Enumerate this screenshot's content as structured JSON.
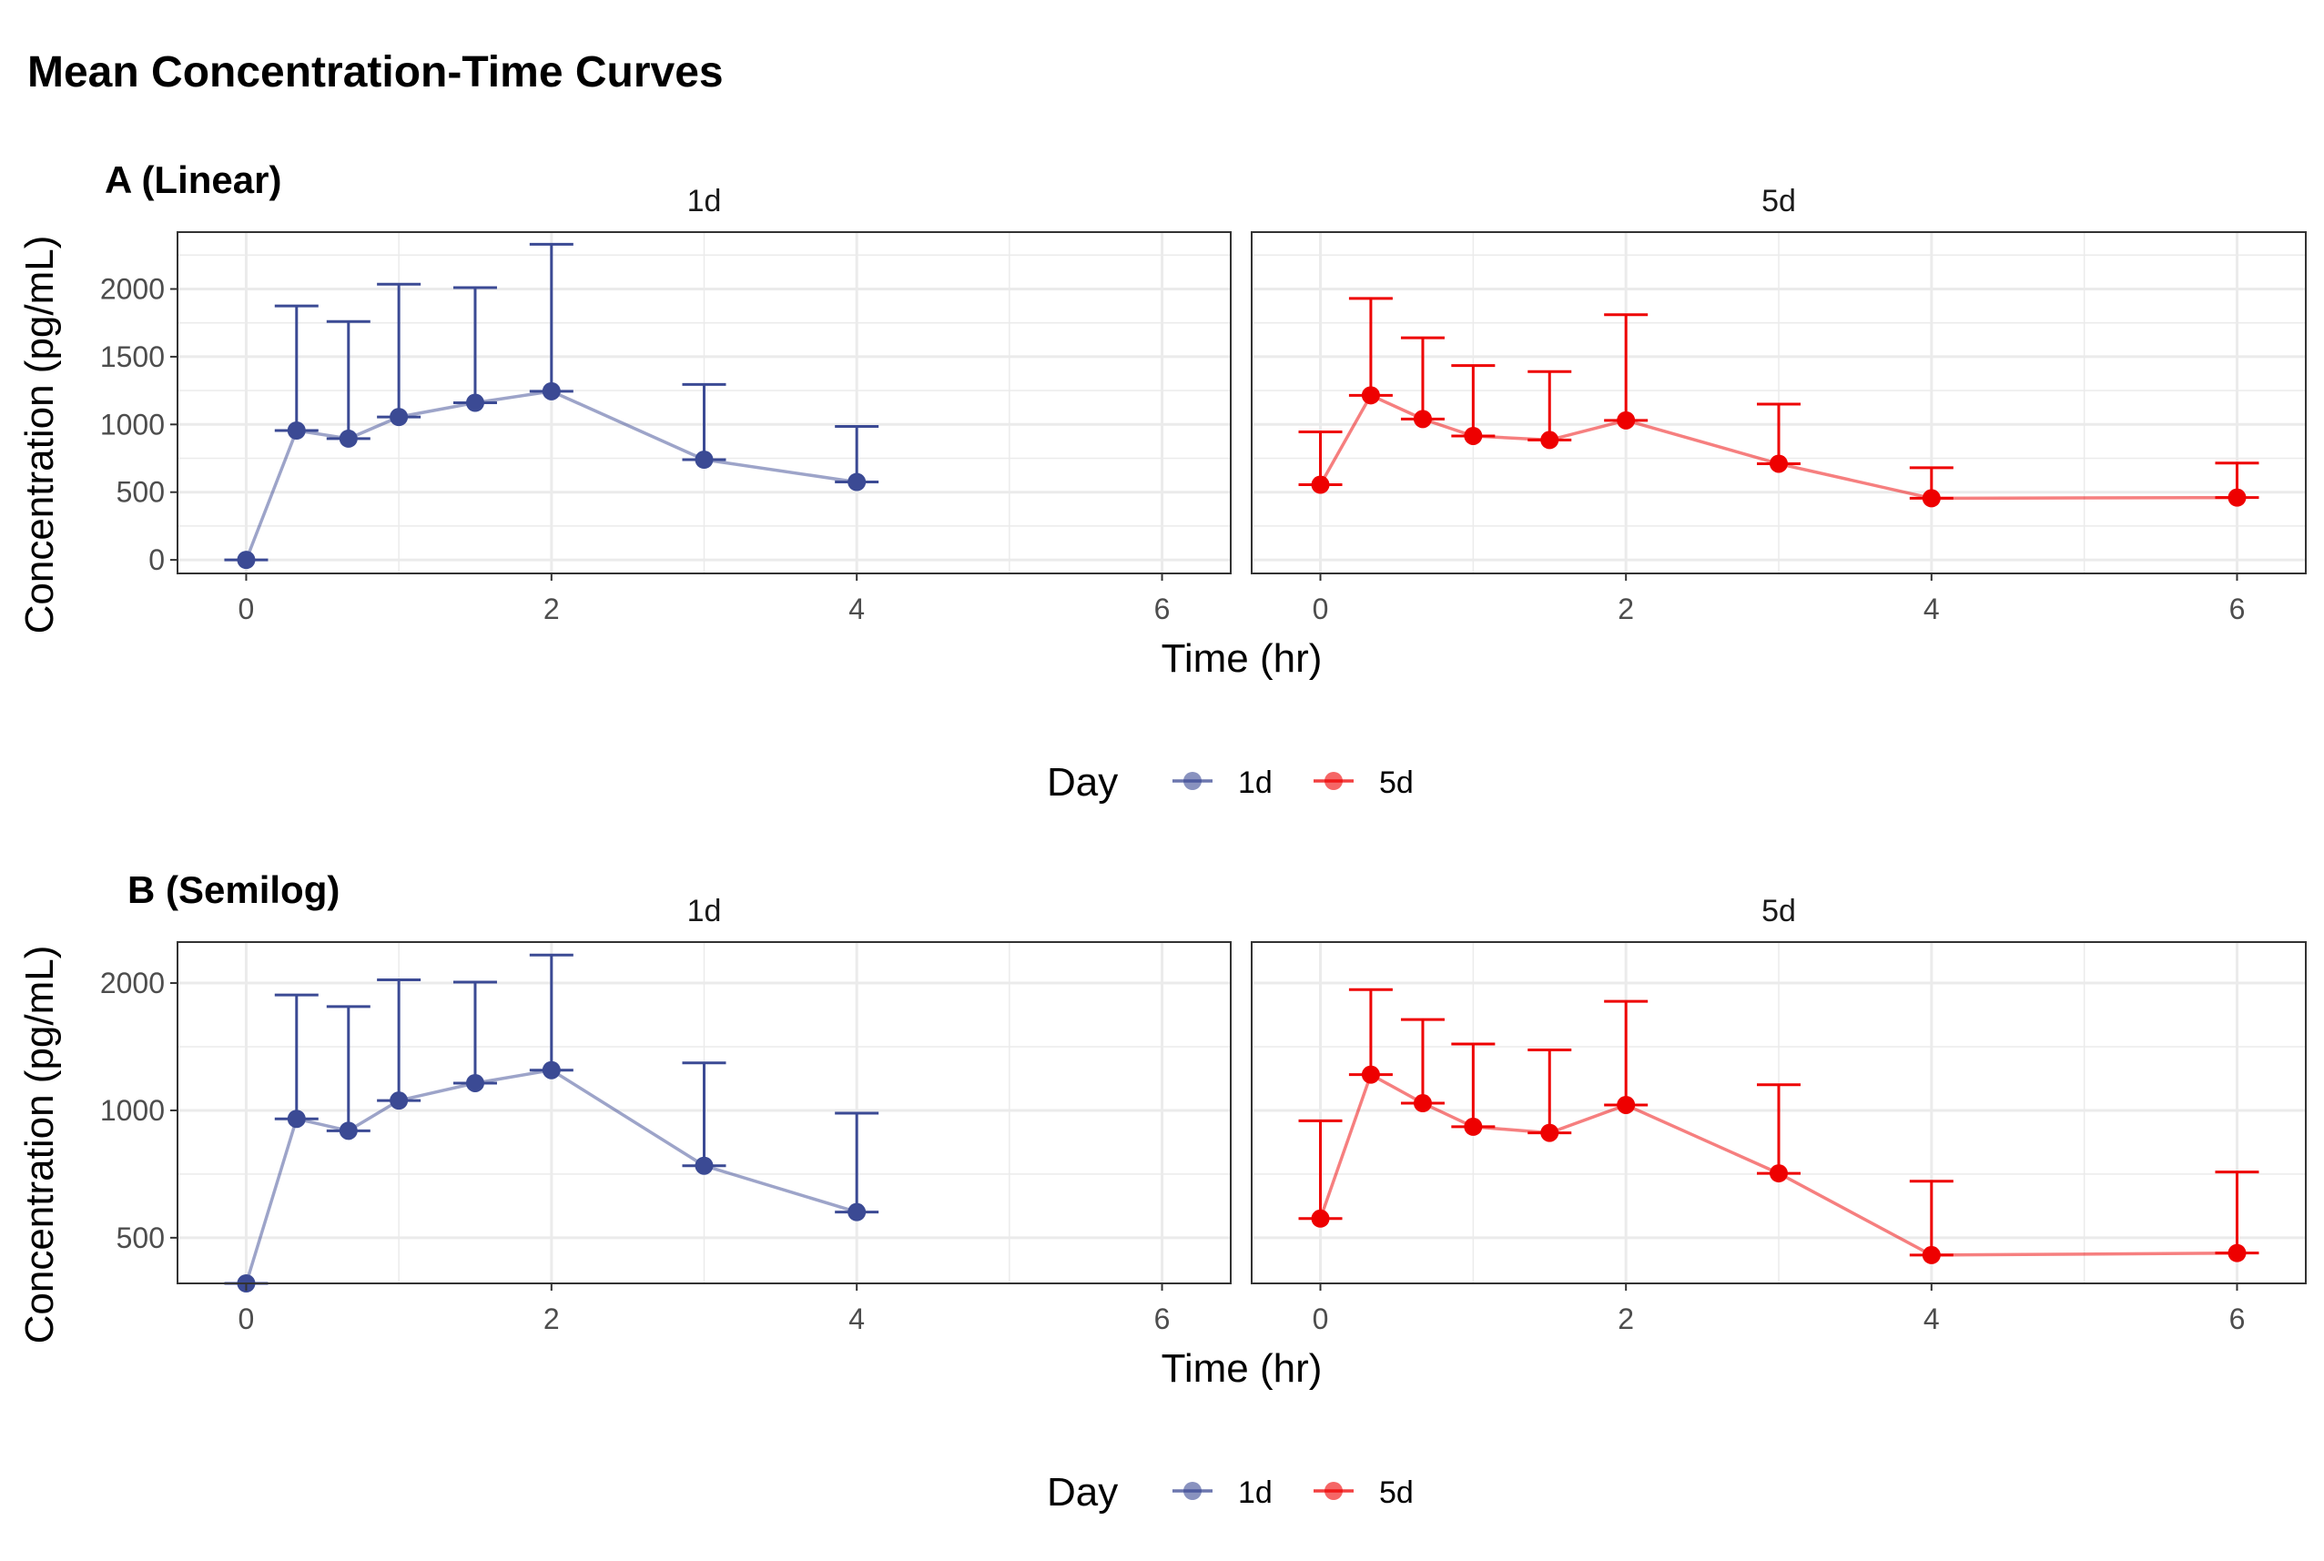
{
  "title": "Mean Concentration-Time Curves",
  "colors": {
    "1d": "#3B4A94",
    "5d": "#EE0000",
    "grid": "#EBEBEB"
  },
  "legend": {
    "title": "Day",
    "entries": [
      "1d",
      "5d"
    ]
  },
  "chart_data": [
    {
      "type": "line",
      "tag": "A (Linear)",
      "scale": "linear",
      "xlabel": "Time (hr)",
      "ylabel": "Concentration (pg/mL)",
      "xlim": [
        -0.45,
        6.45
      ],
      "ylim": [
        -100,
        2420
      ],
      "x_ticks": [
        0,
        2,
        4,
        6
      ],
      "y_ticks": [
        0,
        500,
        1000,
        1500,
        2000
      ],
      "y_tick_labels": [
        "0",
        "500",
        "1000",
        "1500",
        "2000"
      ],
      "facets": [
        "1d",
        "5d"
      ],
      "series": [
        {
          "name": "1d",
          "x": [
            0,
            0.33,
            0.67,
            1,
            1.5,
            2,
            3,
            4
          ],
          "y": [
            0,
            955,
            895,
            1055,
            1160,
            1245,
            740,
            575
          ],
          "error_upper": [
            0,
            1875,
            1760,
            2035,
            2010,
            2330,
            1295,
            985
          ]
        },
        {
          "name": "5d",
          "x": [
            0,
            0.33,
            0.67,
            1,
            1.5,
            2,
            3,
            4,
            6
          ],
          "y": [
            555,
            1215,
            1040,
            915,
            885,
            1030,
            710,
            455,
            460
          ],
          "error_upper": [
            945,
            1930,
            1640,
            1435,
            1390,
            1810,
            1150,
            680,
            715
          ]
        }
      ]
    },
    {
      "type": "line",
      "tag": "B (Semilog)",
      "scale": "log",
      "xlabel": "Time (hr)",
      "ylabel": "Concentration (pg/mL)",
      "xlim": [
        -0.45,
        6.45
      ],
      "ylim": [
        390,
        2500
      ],
      "x_ticks": [
        0,
        2,
        4,
        6
      ],
      "y_ticks": [
        500,
        1000,
        2000
      ],
      "y_tick_labels": [
        "500",
        "1000",
        "2000"
      ],
      "facets": [
        "1d",
        "5d"
      ],
      "series": [
        {
          "name": "1d",
          "x": [
            0,
            0.33,
            0.67,
            1,
            1.5,
            2,
            3,
            4
          ],
          "y": [
            390,
            955,
            895,
            1055,
            1160,
            1245,
            740,
            575
          ],
          "error_upper": [
            390,
            1875,
            1760,
            2035,
            2010,
            2330,
            1295,
            985
          ]
        },
        {
          "name": "5d",
          "x": [
            0,
            0.33,
            0.67,
            1,
            1.5,
            2,
            3,
            4,
            6
          ],
          "y": [
            555,
            1215,
            1040,
            915,
            885,
            1030,
            710,
            455,
            460
          ],
          "error_upper": [
            945,
            1930,
            1640,
            1435,
            1390,
            1810,
            1150,
            680,
            715
          ]
        }
      ]
    }
  ]
}
